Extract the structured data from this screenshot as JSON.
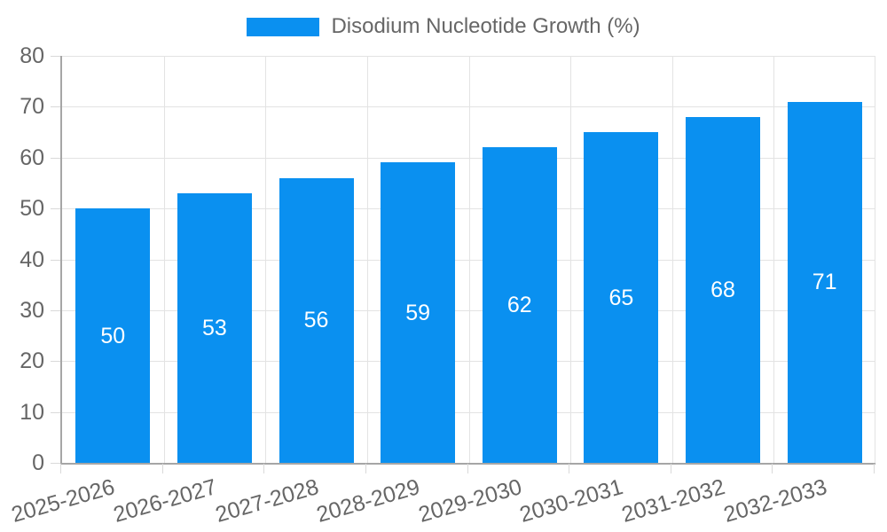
{
  "chart_data": {
    "type": "bar",
    "legend_label": "Disodium Nucleotide Growth (%)",
    "categories": [
      "2025-2026",
      "2026-2027",
      "2027-2028",
      "2028-2029",
      "2029-2030",
      "2030-2031",
      "2031-2032",
      "2032-2033"
    ],
    "values": [
      50,
      53,
      56,
      59,
      62,
      65,
      68,
      71
    ],
    "yticks": [
      0,
      10,
      20,
      30,
      40,
      50,
      60,
      70,
      80
    ],
    "ylim": [
      0,
      80
    ],
    "grid": true,
    "legend_position": "top",
    "value_label_position": "inside-center",
    "colors": {
      "bar": "#0a90f0",
      "grid": "#e3e3e3",
      "axis": "#a6a6a6",
      "tick_mark": "#d9d9d9",
      "text": "#666666",
      "value_label": "#ffffff",
      "background": "#ffffff"
    }
  }
}
